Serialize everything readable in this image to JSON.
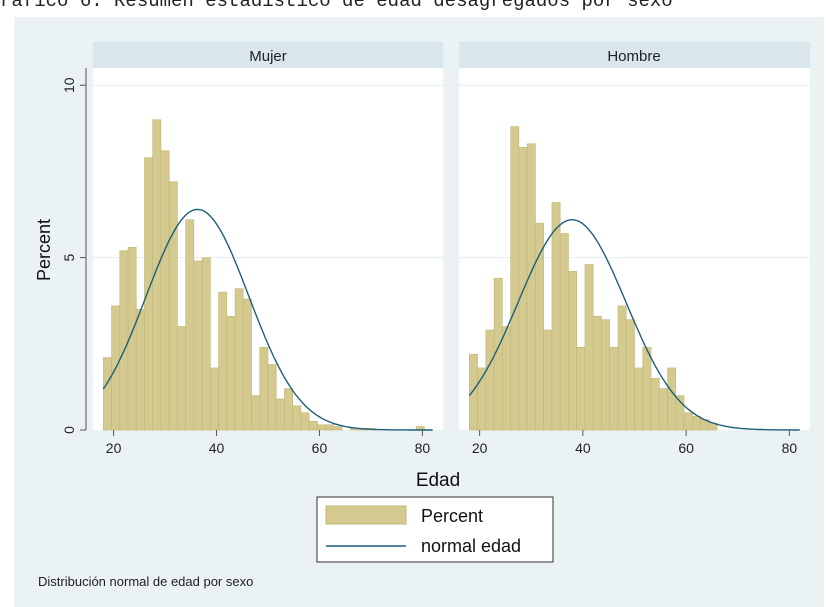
{
  "caption_text": "ráfico 6. Resumen estadístico de edad desagregados por sexo",
  "colors": {
    "background": "#eaf2f3",
    "plot_bg": "#ffffff",
    "strip_bg": "#d9e6eb",
    "bar_fill": "#d4c98e",
    "bar_stroke": "#c2b676",
    "curve": "#1f5f7a",
    "grid": "#e6eef0"
  },
  "chart_data": {
    "type": "bar",
    "title": "",
    "xlabel": "Edad",
    "ylabel": "Percent",
    "xlim": [
      16,
      84
    ],
    "ylim": [
      0,
      10.5
    ],
    "xticks": [
      20,
      40,
      60,
      80
    ],
    "yticks": [
      0,
      5,
      10
    ],
    "grid": true,
    "bin_start": 18,
    "bin_width": 1.6,
    "legend": {
      "position": "bottom-center",
      "entries": [
        {
          "label": "Percent",
          "kind": "bar"
        },
        {
          "label": "normal edad",
          "kind": "line"
        }
      ]
    },
    "note": "Distribución normal de edad por sexo",
    "panels": [
      {
        "name": "Mujer",
        "values": [
          2.1,
          3.6,
          5.2,
          5.3,
          3.5,
          7.9,
          9.0,
          8.1,
          7.2,
          3.0,
          6.1,
          4.9,
          5.0,
          1.8,
          4.0,
          3.3,
          4.1,
          3.8,
          1.0,
          2.4,
          1.9,
          0.9,
          1.2,
          0.7,
          0.5,
          0.25,
          0.15,
          0.15,
          0.1,
          0.0,
          0.05,
          0.05,
          0.05,
          0.0,
          0.0,
          0.0,
          0.0,
          0.0,
          0.1,
          0.0
        ],
        "normal": {
          "mean": 36.3,
          "peak": 6.4
        }
      },
      {
        "name": "Hombre",
        "values": [
          2.2,
          1.8,
          2.9,
          4.4,
          3.0,
          8.8,
          8.2,
          8.3,
          6.0,
          2.9,
          6.6,
          5.7,
          4.6,
          2.4,
          4.8,
          3.3,
          3.2,
          2.4,
          3.6,
          3.2,
          1.8,
          2.4,
          1.5,
          1.2,
          1.8,
          1.0,
          0.5,
          0.4,
          0.3,
          0.2,
          0.0,
          0.0,
          0.0,
          0.0,
          0.0,
          0.0,
          0.0,
          0.0,
          0.0,
          0.0
        ],
        "normal": {
          "mean": 37.9,
          "peak": 6.1
        }
      }
    ]
  }
}
